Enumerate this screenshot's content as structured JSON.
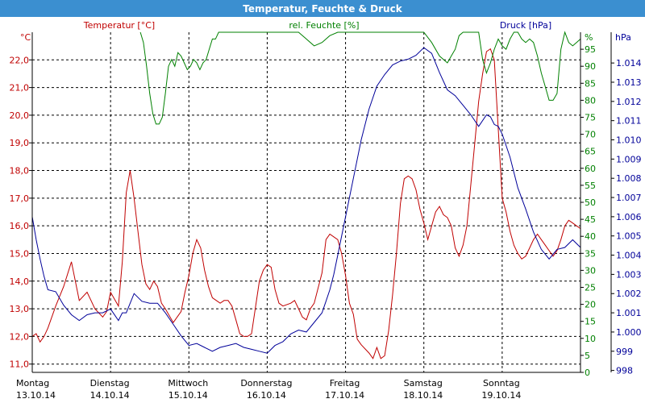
{
  "window_title": "Temperatur, Feuchte & Druck",
  "chart_data": {
    "type": "line",
    "x": {
      "ticks": [
        {
          "day": "Montag",
          "date": "13.10.14"
        },
        {
          "day": "Dienstag",
          "date": "14.10.14"
        },
        {
          "day": "Mittwoch",
          "date": "15.10.14"
        },
        {
          "day": "Donnerstag",
          "date": "16.10.14"
        },
        {
          "day": "Freitag",
          "date": "17.10.14"
        },
        {
          "day": "Samstag",
          "date": "18.10.14"
        },
        {
          "day": "Sonntag",
          "date": "19.10.14"
        }
      ],
      "range": [
        13.0,
        20.0
      ],
      "grid": true
    },
    "axes": {
      "temperature": {
        "label": "Temperatur [°C]",
        "unit": "°C",
        "range": [
          10.7,
          23.0
        ],
        "ticks": [
          "11,0",
          "12,0",
          "13,0",
          "14,0",
          "15,0",
          "16,0",
          "17,0",
          "18,0",
          "19,0",
          "20,0",
          "21,0",
          "22,0"
        ],
        "color": "#c00000"
      },
      "humidity": {
        "label": "rel. Feuchte [%]",
        "unit": "%",
        "range": [
          0,
          100
        ],
        "ticks": [
          "0",
          "5",
          "10",
          "15",
          "20",
          "25",
          "30",
          "35",
          "40",
          "45",
          "50",
          "55",
          "60",
          "65",
          "70",
          "75",
          "80",
          "85",
          "90",
          "95"
        ],
        "color": "#008000"
      },
      "pressure": {
        "label": "Druck [hPa]",
        "unit": "hPa",
        "range": [
          997.9,
          1015.6
        ],
        "ticks": [
          "998",
          "999",
          "1.000",
          "1.001",
          "1.002",
          "1.003",
          "1.004",
          "1.005",
          "1.006",
          "1.007",
          "1.008",
          "1.009",
          "1.010",
          "1.011",
          "1.012",
          "1.013",
          "1.014"
        ],
        "color": "#000099"
      }
    },
    "series": [
      {
        "name": "Temperatur [°C]",
        "axis": "temperature",
        "color": "#c00000",
        "x": [
          13.0,
          13.05,
          13.1,
          13.15,
          13.2,
          13.3,
          13.4,
          13.5,
          13.6,
          13.7,
          13.75,
          13.8,
          13.9,
          13.95,
          14.0,
          14.1,
          14.15,
          14.2,
          14.25,
          14.3,
          14.35,
          14.4,
          14.45,
          14.5,
          14.55,
          14.6,
          14.65,
          14.7,
          14.8,
          14.9,
          14.95,
          15.0,
          15.05,
          15.1,
          15.15,
          15.2,
          15.25,
          15.3,
          15.35,
          15.4,
          15.45,
          15.5,
          15.55,
          15.6,
          15.65,
          15.7,
          15.75,
          15.8,
          15.9,
          15.95,
          16.0,
          16.05,
          16.1,
          16.15,
          16.2,
          16.3,
          16.35,
          16.4,
          16.45,
          16.5,
          16.55,
          16.6,
          16.7,
          16.75,
          16.8,
          16.9,
          16.95,
          17.0,
          17.05,
          17.1,
          17.15,
          17.2,
          17.3,
          17.35,
          17.4,
          17.45,
          17.5,
          17.55,
          17.6,
          17.65,
          17.7,
          17.75,
          17.8,
          17.85,
          17.9,
          17.95,
          18.0,
          18.05,
          18.1,
          18.15,
          18.2,
          18.25,
          18.3,
          18.35,
          18.4,
          18.45,
          18.5,
          18.55,
          18.6,
          18.65,
          18.7,
          18.75,
          18.8,
          18.85,
          18.9,
          18.95,
          19.0,
          19.05,
          19.1,
          19.15,
          19.2,
          19.25,
          19.3,
          19.35,
          19.4,
          19.45,
          19.5,
          19.55,
          19.6,
          19.65,
          19.7,
          19.75,
          19.8,
          19.85,
          19.9,
          19.95,
          20.0
        ],
        "values": [
          12.0,
          12.1,
          11.8,
          12.0,
          12.3,
          13.1,
          13.8,
          14.7,
          13.3,
          13.6,
          13.3,
          13.0,
          12.7,
          12.9,
          13.6,
          13.1,
          14.7,
          17.2,
          18.0,
          17.0,
          15.8,
          14.6,
          13.9,
          13.7,
          14.0,
          13.8,
          13.2,
          13.0,
          12.5,
          12.9,
          13.6,
          14.2,
          15.0,
          15.5,
          15.2,
          14.4,
          13.8,
          13.4,
          13.3,
          13.2,
          13.3,
          13.3,
          13.1,
          12.6,
          12.1,
          12.0,
          12.0,
          12.1,
          14.0,
          14.4,
          14.6,
          14.5,
          13.7,
          13.2,
          13.1,
          13.2,
          13.3,
          13.0,
          12.7,
          12.6,
          13.0,
          13.2,
          14.3,
          15.5,
          15.7,
          15.5,
          15.0,
          14.2,
          13.2,
          12.8,
          11.9,
          11.7,
          11.4,
          11.2,
          11.6,
          11.2,
          11.3,
          12.2,
          13.5,
          15.0,
          16.8,
          17.7,
          17.8,
          17.7,
          17.3,
          16.6,
          16.1,
          15.5,
          16.0,
          16.5,
          16.7,
          16.4,
          16.3,
          16.0,
          15.2,
          14.9,
          15.3,
          16.0,
          17.5,
          19.0,
          20.5,
          21.5,
          22.3,
          22.4,
          22.0,
          19.5,
          17.0,
          16.5,
          15.8,
          15.3,
          15.0,
          14.8,
          14.9,
          15.2,
          15.5,
          15.7,
          15.5,
          15.3,
          15.1,
          14.9,
          15.1,
          15.5,
          16.0,
          16.2,
          16.1,
          16.0,
          15.9
        ]
      },
      {
        "name": "rel. Feuchte [%]",
        "axis": "humidity",
        "color": "#008000",
        "x": [
          14.38,
          14.42,
          14.46,
          14.5,
          14.54,
          14.58,
          14.62,
          14.66,
          14.7,
          14.74,
          14.78,
          14.82,
          14.86,
          14.9,
          14.94,
          14.98,
          15.02,
          15.06,
          15.1,
          15.14,
          15.18,
          15.22,
          15.26,
          15.3,
          15.34,
          15.38,
          15.42,
          15.46,
          15.5,
          15.55,
          15.6,
          15.65,
          15.7,
          15.75,
          15.8,
          15.85,
          15.9,
          15.95,
          16.0,
          16.05,
          16.1,
          16.15,
          16.2,
          16.3,
          16.4,
          16.5,
          16.6,
          16.7,
          16.8,
          16.9,
          17.0,
          17.1,
          17.2,
          17.3,
          17.4,
          17.5,
          17.6,
          17.7,
          17.8,
          17.9,
          18.0,
          18.1,
          18.2,
          18.3,
          18.35,
          18.4,
          18.45,
          18.5,
          18.55,
          18.6,
          18.65,
          18.7,
          18.75,
          18.8,
          18.85,
          18.9,
          18.95,
          19.0,
          19.05,
          19.1,
          19.15,
          19.2,
          19.25,
          19.3,
          19.35,
          19.4,
          19.45,
          19.5,
          19.55,
          19.6,
          19.65,
          19.7,
          19.75,
          19.8,
          19.85,
          19.9,
          19.95,
          20.0
        ],
        "values": [
          100,
          97,
          90,
          82,
          76,
          73,
          73,
          75,
          82,
          90,
          92,
          90,
          94,
          93,
          91,
          89,
          90,
          92,
          91,
          89,
          91,
          92,
          95,
          98,
          98,
          100,
          100,
          100,
          100,
          100,
          100,
          100,
          100,
          100,
          100,
          100,
          100,
          100,
          100,
          100,
          100,
          100,
          100,
          100,
          100,
          98,
          96,
          97,
          99,
          100,
          100,
          100,
          100,
          100,
          100,
          100,
          100,
          100,
          100,
          100,
          100,
          97,
          93,
          91,
          93,
          95,
          99,
          100,
          100,
          100,
          100,
          100,
          92,
          88,
          91,
          95,
          98,
          96,
          95,
          98,
          100,
          100,
          98,
          97,
          98,
          97,
          93,
          88,
          84,
          80,
          80,
          82,
          95,
          100,
          97,
          96,
          97,
          98
        ]
      },
      {
        "name": "Druck [hPa]",
        "axis": "pressure",
        "color": "#000099",
        "x": [
          13.0,
          13.05,
          13.1,
          13.15,
          13.2,
          13.3,
          13.4,
          13.5,
          13.6,
          13.7,
          13.8,
          13.9,
          14.0,
          14.1,
          14.15,
          14.2,
          14.3,
          14.4,
          14.5,
          14.6,
          14.7,
          14.8,
          14.9,
          15.0,
          15.1,
          15.2,
          15.3,
          15.4,
          15.5,
          15.6,
          15.7,
          15.8,
          15.9,
          16.0,
          16.1,
          16.2,
          16.3,
          16.4,
          16.5,
          16.6,
          16.7,
          16.75,
          16.8,
          16.85,
          16.9,
          17.0,
          17.1,
          17.2,
          17.3,
          17.4,
          17.5,
          17.6,
          17.7,
          17.8,
          17.9,
          18.0,
          18.1,
          18.2,
          18.3,
          18.4,
          18.5,
          18.6,
          18.7,
          18.8,
          18.85,
          18.9,
          18.95,
          19.0,
          19.1,
          19.2,
          19.3,
          19.4,
          19.5,
          19.6,
          19.7,
          19.8,
          19.9,
          20.0
        ],
        "values": [
          1006.0,
          1004.8,
          1003.8,
          1002.9,
          1002.2,
          1002.1,
          1001.4,
          1000.9,
          1000.6,
          1000.9,
          1001.0,
          1001.0,
          1001.2,
          1000.6,
          1001.0,
          1001.0,
          1002.0,
          1001.6,
          1001.5,
          1001.5,
          1001.0,
          1000.4,
          999.8,
          999.3,
          999.4,
          999.2,
          999.0,
          999.2,
          999.3,
          999.4,
          999.2,
          999.1,
          999.0,
          998.9,
          999.3,
          999.5,
          999.9,
          1000.1,
          1000.0,
          1000.5,
          1001.0,
          1001.6,
          1002.2,
          1003.0,
          1004.0,
          1006.0,
          1008.0,
          1010.0,
          1011.6,
          1012.8,
          1013.4,
          1013.9,
          1014.1,
          1014.2,
          1014.4,
          1014.8,
          1014.5,
          1013.5,
          1012.6,
          1012.3,
          1011.8,
          1011.3,
          1010.7,
          1011.3,
          1011.2,
          1010.8,
          1010.7,
          1010.3,
          1009.1,
          1007.5,
          1006.4,
          1005.2,
          1004.3,
          1003.8,
          1004.3,
          1004.4,
          1004.8,
          1004.4
        ]
      }
    ]
  }
}
